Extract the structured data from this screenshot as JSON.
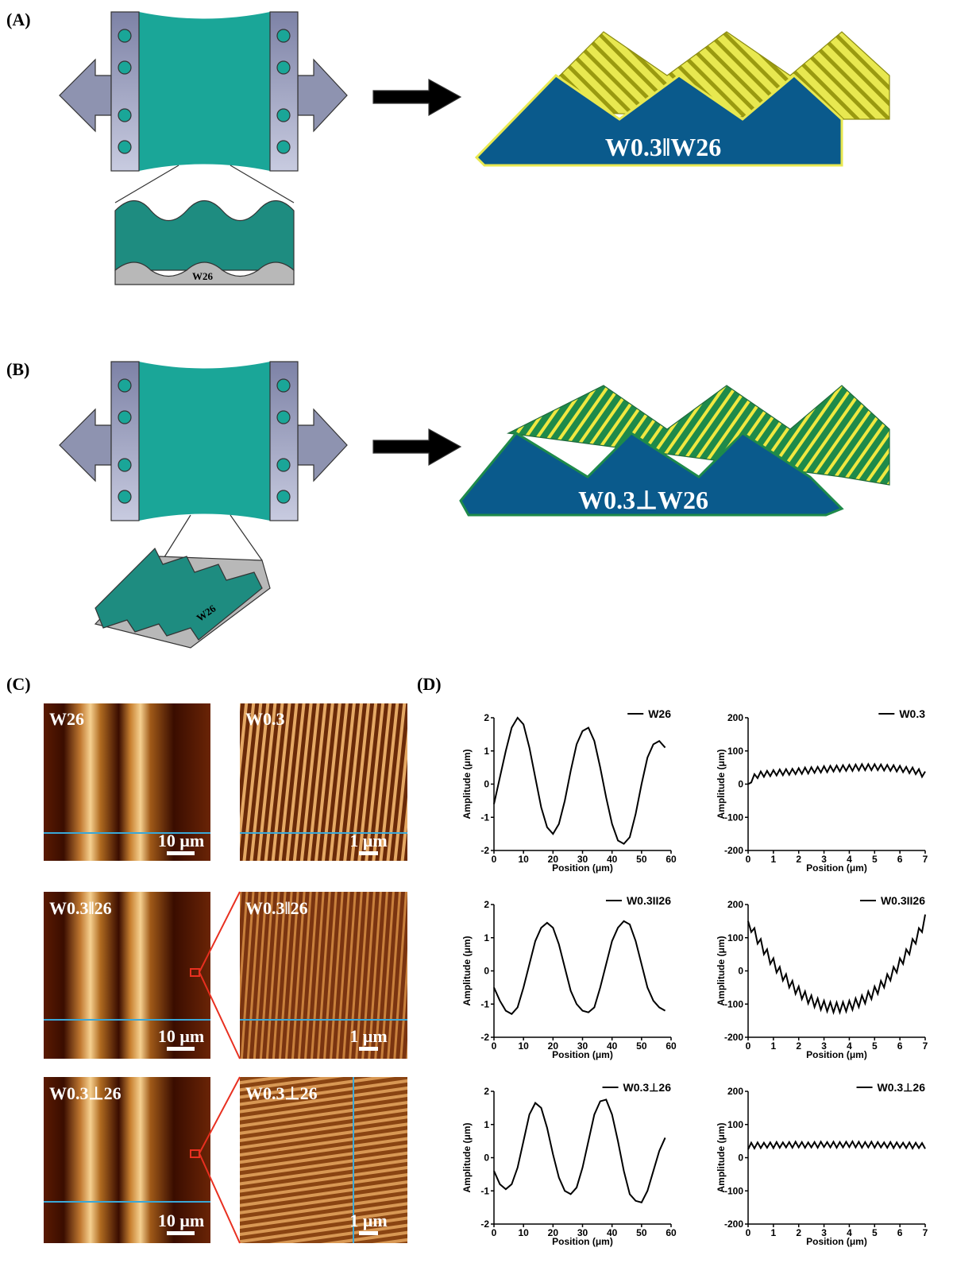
{
  "panel_labels": [
    "(A)",
    "(B)",
    "(C)",
    "(D)"
  ],
  "diagram_a": {
    "inset_label": "W26",
    "result_label": "W0.3‖W26"
  },
  "diagram_b": {
    "inset_label": "W26",
    "result_label": "W0.3⊥W26"
  },
  "afm_images": [
    {
      "label": "W26",
      "scale": "10 μm"
    },
    {
      "label": "W0.3",
      "scale": "1 μm"
    },
    {
      "label": "W0.3‖26",
      "scale": "10 μm"
    },
    {
      "label": "W0.3‖26",
      "scale": "1 μm"
    },
    {
      "label": "W0.3⊥26",
      "scale": "10 μm"
    },
    {
      "label": "W0.3⊥26",
      "scale": "1 μm"
    }
  ],
  "chart_data": [
    {
      "type": "line",
      "xlabel": "Position (μm)",
      "ylabel": "Amplitude (μm)",
      "legend": "upper right",
      "x": [
        0,
        2,
        4,
        6,
        8,
        10,
        12,
        14,
        16,
        18,
        20,
        22,
        24,
        26,
        28,
        30,
        32,
        34,
        36,
        38,
        40,
        42,
        44,
        46,
        48,
        50,
        52,
        54,
        56,
        58
      ],
      "series": [
        {
          "name": "W26",
          "color": "#000000",
          "values": [
            -0.6,
            0.2,
            1.0,
            1.7,
            2.0,
            1.8,
            1.1,
            0.2,
            -0.7,
            -1.3,
            -1.5,
            -1.2,
            -0.5,
            0.4,
            1.2,
            1.6,
            1.7,
            1.3,
            0.5,
            -0.4,
            -1.2,
            -1.7,
            -1.8,
            -1.6,
            -0.9,
            0.0,
            0.8,
            1.2,
            1.3,
            1.1
          ]
        }
      ],
      "xlim": [
        0,
        60
      ],
      "xticks": [
        0,
        10,
        20,
        30,
        40,
        50,
        60
      ],
      "ylim": [
        -2,
        2
      ],
      "yticks": [
        -2,
        -1,
        0,
        1,
        2
      ]
    },
    {
      "type": "line",
      "xlabel": "Position (μm)",
      "ylabel": "Amplitude (μm)",
      "legend": "upper right",
      "x": [
        0,
        0.125,
        0.25,
        0.375,
        0.5,
        0.625,
        0.75,
        0.875,
        1,
        1.125,
        1.25,
        1.375,
        1.5,
        1.625,
        1.75,
        1.875,
        2,
        2.125,
        2.25,
        2.375,
        2.5,
        2.625,
        2.75,
        2.875,
        3,
        3.125,
        3.25,
        3.375,
        3.5,
        3.625,
        3.75,
        3.875,
        4,
        4.125,
        4.25,
        4.375,
        4.5,
        4.625,
        4.75,
        4.875,
        5,
        5.125,
        5.25,
        5.375,
        5.5,
        5.625,
        5.75,
        5.875,
        6,
        6.125,
        6.25,
        6.375,
        6.5,
        6.625,
        6.75,
        6.875,
        7
      ],
      "series": [
        {
          "name": "W0.3",
          "color": "#000000",
          "values": [
            0,
            5,
            30,
            18,
            38,
            22,
            40,
            24,
            42,
            26,
            44,
            27,
            45,
            28,
            46,
            30,
            48,
            31,
            50,
            32,
            51,
            34,
            52,
            35,
            54,
            36,
            55,
            38,
            56,
            38,
            57,
            40,
            58,
            40,
            59,
            41,
            60,
            42,
            60,
            42,
            60,
            42,
            59,
            41,
            58,
            40,
            57,
            38,
            55,
            36,
            52,
            33,
            50,
            30,
            45,
            22,
            38
          ]
        }
      ],
      "xlim": [
        0,
        7
      ],
      "xticks": [
        0,
        1,
        2,
        3,
        4,
        5,
        6,
        7
      ],
      "ylim": [
        -200,
        200
      ],
      "yticks": [
        -200,
        -100,
        0,
        100,
        200
      ]
    },
    {
      "type": "line",
      "xlabel": "Position (μm)",
      "ylabel": "Amplitude (μm)",
      "legend": "upper right",
      "x": [
        0,
        2,
        4,
        6,
        8,
        10,
        12,
        14,
        16,
        18,
        20,
        22,
        24,
        26,
        28,
        30,
        32,
        34,
        36,
        38,
        40,
        42,
        44,
        46,
        48,
        50,
        52,
        54,
        56,
        58
      ],
      "series": [
        {
          "name": "W0.3II26",
          "color": "#000000",
          "values": [
            -0.5,
            -0.9,
            -1.2,
            -1.3,
            -1.1,
            -0.5,
            0.2,
            0.9,
            1.3,
            1.45,
            1.3,
            0.8,
            0.1,
            -0.6,
            -1.0,
            -1.2,
            -1.25,
            -1.1,
            -0.5,
            0.2,
            0.9,
            1.3,
            1.5,
            1.4,
            0.9,
            0.2,
            -0.5,
            -0.9,
            -1.1,
            -1.2
          ]
        }
      ],
      "xlim": [
        0,
        60
      ],
      "xticks": [
        0,
        10,
        20,
        30,
        40,
        50,
        60
      ],
      "ylim": [
        -2,
        2
      ],
      "yticks": [
        -2,
        -1,
        0,
        1,
        2
      ]
    },
    {
      "type": "line",
      "xlabel": "Position (μm)",
      "ylabel": "Amplitude (μm)",
      "legend": "upper right",
      "x": [
        0,
        0.125,
        0.25,
        0.375,
        0.5,
        0.625,
        0.75,
        0.875,
        1,
        1.125,
        1.25,
        1.375,
        1.5,
        1.625,
        1.75,
        1.875,
        2,
        2.125,
        2.25,
        2.375,
        2.5,
        2.625,
        2.75,
        2.875,
        3,
        3.125,
        3.25,
        3.375,
        3.5,
        3.625,
        3.75,
        3.875,
        4,
        4.125,
        4.25,
        4.375,
        4.5,
        4.625,
        4.75,
        4.875,
        5,
        5.125,
        5.25,
        5.375,
        5.5,
        5.625,
        5.75,
        5.875,
        6,
        6.125,
        6.25,
        6.375,
        6.5,
        6.625,
        6.75,
        6.875,
        7
      ],
      "series": [
        {
          "name": "W0.3II26",
          "color": "#000000",
          "values": [
            150,
            117,
            129,
            82,
            96,
            50,
            65,
            21,
            38,
            -5,
            12,
            -29,
            -10,
            -50,
            -30,
            -69,
            -47,
            -85,
            -62,
            -98,
            -74,
            -109,
            -83,
            -117,
            -90,
            -122,
            -94,
            -125,
            -95,
            -125,
            -94,
            -122,
            -90,
            -117,
            -83,
            -109,
            -74,
            -98,
            -62,
            -85,
            -47,
            -69,
            -30,
            -50,
            -10,
            -29,
            12,
            -5,
            38,
            21,
            65,
            50,
            96,
            82,
            129,
            117,
            170
          ]
        }
      ],
      "xlim": [
        0,
        7
      ],
      "xticks": [
        0,
        1,
        2,
        3,
        4,
        5,
        6,
        7
      ],
      "ylim": [
        -200,
        200
      ],
      "yticks": [
        -200,
        -100,
        0,
        100,
        200
      ]
    },
    {
      "type": "line",
      "xlabel": "Position (μm)",
      "ylabel": "Amplitude (μm)",
      "legend": "upper right",
      "x": [
        0,
        2,
        4,
        6,
        8,
        10,
        12,
        14,
        16,
        18,
        20,
        22,
        24,
        26,
        28,
        30,
        32,
        34,
        36,
        38,
        40,
        42,
        44,
        46,
        48,
        50,
        52,
        54,
        56,
        58
      ],
      "series": [
        {
          "name": "W0.3⊥26",
          "color": "#000000",
          "values": [
            -0.4,
            -0.8,
            -0.95,
            -0.8,
            -0.3,
            0.5,
            1.3,
            1.65,
            1.5,
            0.9,
            0.1,
            -0.6,
            -1.0,
            -1.1,
            -0.9,
            -0.3,
            0.5,
            1.3,
            1.7,
            1.75,
            1.3,
            0.5,
            -0.4,
            -1.1,
            -1.3,
            -1.35,
            -1.0,
            -0.4,
            0.2,
            0.6
          ]
        }
      ],
      "xlim": [
        0,
        60
      ],
      "xticks": [
        0,
        10,
        20,
        30,
        40,
        50,
        60
      ],
      "ylim": [
        -2,
        2
      ],
      "yticks": [
        -2,
        -1,
        0,
        1,
        2
      ]
    },
    {
      "type": "line",
      "xlabel": "Position (μm)",
      "ylabel": "Amplitude (μm)",
      "legend": "upper right",
      "x": [
        0,
        0.125,
        0.25,
        0.375,
        0.5,
        0.625,
        0.75,
        0.875,
        1,
        1.125,
        1.25,
        1.375,
        1.5,
        1.625,
        1.75,
        1.875,
        2,
        2.125,
        2.25,
        2.375,
        2.5,
        2.625,
        2.75,
        2.875,
        3,
        3.125,
        3.25,
        3.375,
        3.5,
        3.625,
        3.75,
        3.875,
        4,
        4.125,
        4.25,
        4.375,
        4.5,
        4.625,
        4.75,
        4.875,
        5,
        5.125,
        5.25,
        5.375,
        5.5,
        5.625,
        5.75,
        5.875,
        6,
        6.125,
        6.25,
        6.375,
        6.5,
        6.625,
        6.75,
        6.875,
        7
      ],
      "series": [
        {
          "name": "W0.3⊥26",
          "color": "#000000",
          "values": [
            25,
            45,
            28,
            46,
            29,
            45,
            30,
            46,
            29,
            47,
            30,
            46,
            31,
            47,
            30,
            48,
            31,
            47,
            30,
            46,
            31,
            47,
            30,
            48,
            32,
            47,
            31,
            48,
            30,
            47,
            31,
            48,
            32,
            49,
            31,
            48,
            30,
            47,
            31,
            48,
            30,
            47,
            31,
            46,
            30,
            47,
            29,
            46,
            30,
            45,
            29,
            46,
            28,
            45,
            29,
            44,
            27
          ]
        }
      ],
      "xlim": [
        0,
        7
      ],
      "xticks": [
        0,
        1,
        2,
        3,
        4,
        5,
        6,
        7
      ],
      "ylim": [
        -200,
        200
      ],
      "yticks": [
        -200,
        -100,
        0,
        100,
        200
      ]
    }
  ]
}
